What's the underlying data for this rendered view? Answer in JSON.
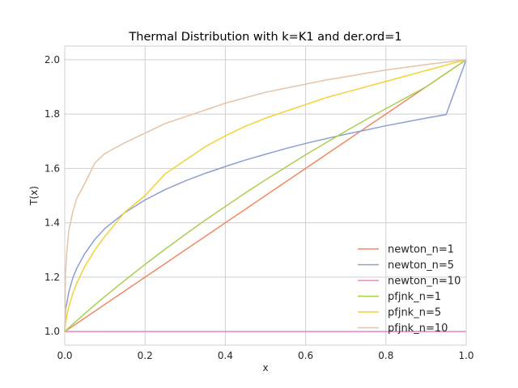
{
  "chart_data": {
    "type": "line",
    "title": "Thermal Distribution with k=K1 and der.ord=1",
    "xlabel": "x",
    "ylabel": "T(x)",
    "xlim": [
      0.0,
      1.0
    ],
    "ylim": [
      0.95,
      2.05
    ],
    "xticks": [
      "0.0",
      "0.2",
      "0.4",
      "0.6",
      "0.8",
      "1.0"
    ],
    "yticks": [
      "1.0",
      "1.2",
      "1.4",
      "1.6",
      "1.8",
      "2.0"
    ],
    "grid": true,
    "legend_position": "lower-right",
    "x": [
      0.0,
      0.002,
      0.005,
      0.01,
      0.02,
      0.03,
      0.05,
      0.075,
      0.1,
      0.15,
      0.2,
      0.25,
      0.3,
      0.35,
      0.4,
      0.45,
      0.5,
      0.55,
      0.6,
      0.65,
      0.7,
      0.75,
      0.8,
      0.85,
      0.9,
      0.95,
      1.0
    ],
    "series": [
      {
        "name": "newton_n=1",
        "color": "#f08a63",
        "values": [
          1.0,
          1.002,
          1.005,
          1.01,
          1.02,
          1.03,
          1.05,
          1.075,
          1.1,
          1.15,
          1.2,
          1.25,
          1.3,
          1.35,
          1.4,
          1.45,
          1.5,
          1.55,
          1.6,
          1.65,
          1.7,
          1.75,
          1.8,
          1.85,
          1.9,
          1.95,
          2.0
        ]
      },
      {
        "name": "newton_n=5",
        "color": "#8c9fd0",
        "values": [
          1.0,
          1.084,
          1.103,
          1.145,
          1.197,
          1.233,
          1.287,
          1.339,
          1.379,
          1.438,
          1.484,
          1.522,
          1.554,
          1.582,
          1.607,
          1.631,
          1.652,
          1.673,
          1.692,
          1.709,
          1.726,
          1.741,
          1.757,
          1.771,
          1.785,
          1.798,
          2.0
        ]
      },
      {
        "name": "newton_n=10",
        "color": "#e887c0",
        "values": [
          1.0,
          1.0,
          1.0,
          1.0,
          1.0,
          1.0,
          1.0,
          1.0,
          1.0,
          1.0,
          1.0,
          1.0,
          1.0,
          1.0,
          1.0,
          1.0,
          1.0,
          1.0,
          1.0,
          1.0,
          1.0,
          1.0,
          1.0,
          1.0,
          1.0,
          1.0,
          1.0
        ]
      },
      {
        "name": "pfjnk_n=1",
        "color": "#a9d04f",
        "values": [
          1.0,
          1.003,
          1.007,
          1.014,
          1.027,
          1.04,
          1.066,
          1.098,
          1.129,
          1.189,
          1.247,
          1.303,
          1.357,
          1.41,
          1.46,
          1.51,
          1.558,
          1.604,
          1.65,
          1.694,
          1.737,
          1.779,
          1.82,
          1.86,
          1.9,
          1.95,
          2.0
        ]
      },
      {
        "name": "pfjnk_n=5",
        "color": "#f5d233",
        "values": [
          1.0,
          1.029,
          1.058,
          1.09,
          1.14,
          1.178,
          1.24,
          1.3,
          1.35,
          1.44,
          1.5,
          1.58,
          1.63,
          1.68,
          1.72,
          1.755,
          1.785,
          1.81,
          1.835,
          1.86,
          1.88,
          1.9,
          1.92,
          1.94,
          1.96,
          1.98,
          2.0
        ]
      },
      {
        "name": "pfjnk_n=10",
        "color": "#e6c3a4",
        "values": [
          1.0,
          1.22,
          1.29,
          1.37,
          1.44,
          1.49,
          1.545,
          1.62,
          1.655,
          1.695,
          1.73,
          1.765,
          1.79,
          1.815,
          1.84,
          1.86,
          1.88,
          1.895,
          1.91,
          1.925,
          1.937,
          1.95,
          1.962,
          1.972,
          1.982,
          1.991,
          2.0
        ]
      }
    ]
  }
}
